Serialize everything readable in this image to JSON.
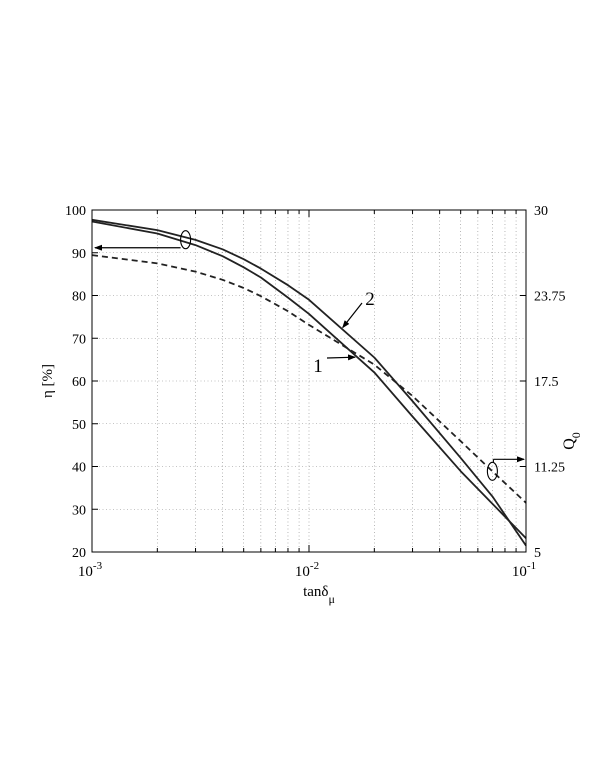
{
  "chart_data": {
    "type": "line",
    "x_scale": "log",
    "xlabel": "tanδ",
    "xlabel_subscript": "μ",
    "ylabel": "η   [%]",
    "y2label": "Q",
    "y2label_subscript": "0",
    "xlim": [
      0.001,
      0.1
    ],
    "ylim": [
      20,
      100
    ],
    "y2lim": [
      5,
      30
    ],
    "grid": true,
    "x_ticks": [
      {
        "value": 0.001,
        "base": "10",
        "exp": "-3"
      },
      {
        "value": 0.01,
        "base": "10",
        "exp": "-2"
      },
      {
        "value": 0.1,
        "base": "10",
        "exp": "-1"
      }
    ],
    "y_ticks": [
      "20",
      "30",
      "40",
      "50",
      "60",
      "70",
      "80",
      "90",
      "100"
    ],
    "y2_ticks": [
      "5",
      "11.25",
      "17.5",
      "23.75",
      "30"
    ],
    "series": [
      {
        "axis": "left",
        "style": "solid",
        "color": "#222222",
        "x": [
          0.001,
          0.002,
          0.003,
          0.004,
          0.005,
          0.006,
          0.008,
          0.01,
          0.02,
          0.03,
          0.05,
          0.07,
          0.1
        ],
        "y": [
          97.3,
          94.5,
          91.8,
          89.2,
          86.6,
          84.2,
          79.5,
          75.7,
          62.0,
          51.7,
          38.9,
          31.3,
          23.2
        ]
      },
      {
        "axis": "left",
        "style": "solid",
        "color": "#222222",
        "x": [
          0.001,
          0.002,
          0.003,
          0.004,
          0.005,
          0.006,
          0.008,
          0.01,
          0.02,
          0.03,
          0.05,
          0.07,
          0.1
        ],
        "y": [
          97.7,
          95.3,
          93.0,
          90.8,
          88.5,
          86.3,
          82.4,
          79.0,
          65.5,
          55.3,
          42.0,
          33.0,
          21.5
        ]
      },
      {
        "axis": "right",
        "style": "dashed",
        "color": "#222222",
        "x": [
          0.001,
          0.002,
          0.003,
          0.004,
          0.005,
          0.006,
          0.008,
          0.01,
          0.02,
          0.03,
          0.05,
          0.07,
          0.1
        ],
        "y": [
          26.7,
          26.1,
          25.5,
          24.9,
          24.3,
          23.7,
          22.6,
          21.6,
          18.7,
          16.4,
          13.1,
          10.9,
          8.6
        ]
      }
    ],
    "annotations": [
      {
        "text": "1",
        "target_series": 0,
        "target_x": 0.0163
      },
      {
        "text": "2",
        "target_series": 1,
        "target_x": 0.0143
      }
    ]
  }
}
